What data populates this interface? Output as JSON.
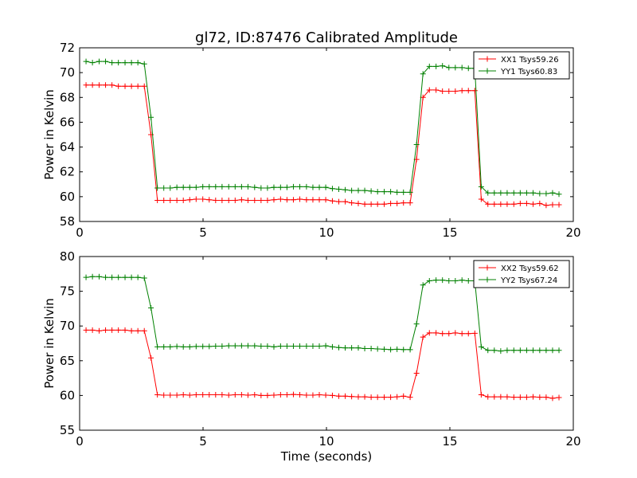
{
  "figure": {
    "title": "gl72, ID:87476 Calibrated Amplitude"
  },
  "chart_data": [
    {
      "type": "line",
      "title": "gl72, ID:87476 Calibrated Amplitude",
      "xlabel": "",
      "ylabel": "Power in Kelvin",
      "xlim": [
        0,
        20
      ],
      "ylim": [
        58,
        72
      ],
      "xticks": [
        0,
        5,
        10,
        15,
        20
      ],
      "yticks": [
        58,
        60,
        62,
        64,
        66,
        68,
        70,
        72
      ],
      "grid": false,
      "legend_position": "top-right",
      "x": [
        0.26,
        0.52,
        0.79,
        1.05,
        1.31,
        1.57,
        1.84,
        2.1,
        2.36,
        2.62,
        2.89,
        3.15,
        3.41,
        3.67,
        3.94,
        4.2,
        4.46,
        4.72,
        4.99,
        5.25,
        5.51,
        5.77,
        6.04,
        6.3,
        6.56,
        6.82,
        7.09,
        7.35,
        7.61,
        7.87,
        8.14,
        8.4,
        8.66,
        8.92,
        9.19,
        9.45,
        9.71,
        9.97,
        10.24,
        10.5,
        10.76,
        11.02,
        11.29,
        11.55,
        11.81,
        12.07,
        12.34,
        12.6,
        12.86,
        13.12,
        13.39,
        13.65,
        13.91,
        14.17,
        14.44,
        14.7,
        14.96,
        15.22,
        15.49,
        15.75,
        16.01,
        16.27,
        16.54,
        16.8,
        17.06,
        17.32,
        17.59,
        17.85,
        18.11,
        18.37,
        18.64,
        18.9,
        19.16,
        19.42
      ],
      "series": [
        {
          "name": "XX1 Tsys59.26",
          "color": "#ff0000",
          "values": [
            69.0,
            69.0,
            69.0,
            69.0,
            69.0,
            68.9,
            68.9,
            68.9,
            68.9,
            68.9,
            65.0,
            59.7,
            59.7,
            59.7,
            59.7,
            59.7,
            59.75,
            59.8,
            59.8,
            59.75,
            59.7,
            59.7,
            59.7,
            59.7,
            59.75,
            59.7,
            59.7,
            59.7,
            59.7,
            59.75,
            59.8,
            59.75,
            59.75,
            59.8,
            59.75,
            59.75,
            59.75,
            59.75,
            59.65,
            59.6,
            59.6,
            59.5,
            59.45,
            59.4,
            59.4,
            59.4,
            59.4,
            59.45,
            59.45,
            59.5,
            59.5,
            63.0,
            68.0,
            68.6,
            68.6,
            68.5,
            68.5,
            68.5,
            68.55,
            68.55,
            68.55,
            59.8,
            59.4,
            59.4,
            59.4,
            59.4,
            59.4,
            59.45,
            59.45,
            59.4,
            59.45,
            59.3,
            59.35,
            59.35
          ]
        },
        {
          "name": "YY1 Tsys60.83",
          "color": "#008000",
          "values": [
            70.9,
            70.8,
            70.9,
            70.9,
            70.8,
            70.8,
            70.8,
            70.8,
            70.8,
            70.7,
            66.4,
            60.7,
            60.7,
            60.7,
            60.75,
            60.75,
            60.75,
            60.75,
            60.8,
            60.8,
            60.8,
            60.8,
            60.8,
            60.8,
            60.8,
            60.8,
            60.75,
            60.7,
            60.7,
            60.75,
            60.75,
            60.75,
            60.8,
            60.8,
            60.8,
            60.75,
            60.75,
            60.75,
            60.65,
            60.6,
            60.55,
            60.5,
            60.5,
            60.5,
            60.45,
            60.4,
            60.4,
            60.4,
            60.35,
            60.35,
            60.35,
            64.2,
            69.9,
            70.5,
            70.5,
            70.55,
            70.4,
            70.4,
            70.4,
            70.35,
            70.35,
            60.8,
            60.3,
            60.3,
            60.3,
            60.3,
            60.3,
            60.3,
            60.3,
            60.3,
            60.25,
            60.25,
            60.3,
            60.2
          ]
        }
      ]
    },
    {
      "type": "line",
      "title": "",
      "xlabel": "Time (seconds)",
      "ylabel": "Power in Kelvin",
      "xlim": [
        0,
        20
      ],
      "ylim": [
        55,
        80
      ],
      "xticks": [
        0,
        5,
        10,
        15,
        20
      ],
      "yticks": [
        55,
        60,
        65,
        70,
        75,
        80
      ],
      "grid": false,
      "legend_position": "top-right",
      "x": [
        0.26,
        0.52,
        0.79,
        1.05,
        1.31,
        1.57,
        1.84,
        2.1,
        2.36,
        2.62,
        2.89,
        3.15,
        3.41,
        3.67,
        3.94,
        4.2,
        4.46,
        4.72,
        4.99,
        5.25,
        5.51,
        5.77,
        6.04,
        6.3,
        6.56,
        6.82,
        7.09,
        7.35,
        7.61,
        7.87,
        8.14,
        8.4,
        8.66,
        8.92,
        9.19,
        9.45,
        9.71,
        9.97,
        10.24,
        10.5,
        10.76,
        11.02,
        11.29,
        11.55,
        11.81,
        12.07,
        12.34,
        12.6,
        12.86,
        13.12,
        13.39,
        13.65,
        13.91,
        14.17,
        14.44,
        14.7,
        14.96,
        15.22,
        15.49,
        15.75,
        16.01,
        16.27,
        16.54,
        16.8,
        17.06,
        17.32,
        17.59,
        17.85,
        18.11,
        18.37,
        18.64,
        18.9,
        19.16,
        19.42
      ],
      "series": [
        {
          "name": "XX2 Tsys59.62",
          "color": "#ff0000",
          "values": [
            69.4,
            69.4,
            69.3,
            69.4,
            69.4,
            69.4,
            69.4,
            69.3,
            69.3,
            69.3,
            65.4,
            60.1,
            60.05,
            60.05,
            60.05,
            60.1,
            60.05,
            60.1,
            60.1,
            60.1,
            60.1,
            60.1,
            60.05,
            60.1,
            60.1,
            60.05,
            60.1,
            60.0,
            60.0,
            60.05,
            60.1,
            60.1,
            60.15,
            60.1,
            60.05,
            60.05,
            60.1,
            60.05,
            60.0,
            59.9,
            59.9,
            59.85,
            59.8,
            59.8,
            59.75,
            59.75,
            59.75,
            59.75,
            59.8,
            59.9,
            59.75,
            63.2,
            68.4,
            69.0,
            69.0,
            68.9,
            68.9,
            69.0,
            68.9,
            68.9,
            68.95,
            60.1,
            59.8,
            59.8,
            59.8,
            59.8,
            59.75,
            59.75,
            59.75,
            59.8,
            59.75,
            59.75,
            59.6,
            59.7
          ]
        },
        {
          "name": "YY2 Tsys67.24",
          "color": "#008000",
          "values": [
            77.0,
            77.1,
            77.1,
            77.0,
            77.0,
            77.0,
            77.0,
            77.0,
            77.0,
            76.9,
            72.6,
            67.0,
            67.0,
            67.0,
            67.05,
            67.0,
            67.0,
            67.05,
            67.05,
            67.05,
            67.1,
            67.1,
            67.15,
            67.15,
            67.15,
            67.15,
            67.15,
            67.1,
            67.1,
            67.0,
            67.1,
            67.1,
            67.1,
            67.1,
            67.1,
            67.1,
            67.1,
            67.15,
            67.0,
            66.9,
            66.85,
            66.85,
            66.85,
            66.75,
            66.75,
            66.7,
            66.65,
            66.6,
            66.65,
            66.6,
            66.6,
            70.3,
            75.9,
            76.5,
            76.6,
            76.6,
            76.5,
            76.5,
            76.6,
            76.5,
            76.5,
            67.0,
            66.5,
            66.5,
            66.4,
            66.5,
            66.5,
            66.5,
            66.5,
            66.5,
            66.5,
            66.5,
            66.5,
            66.5
          ]
        }
      ]
    }
  ]
}
